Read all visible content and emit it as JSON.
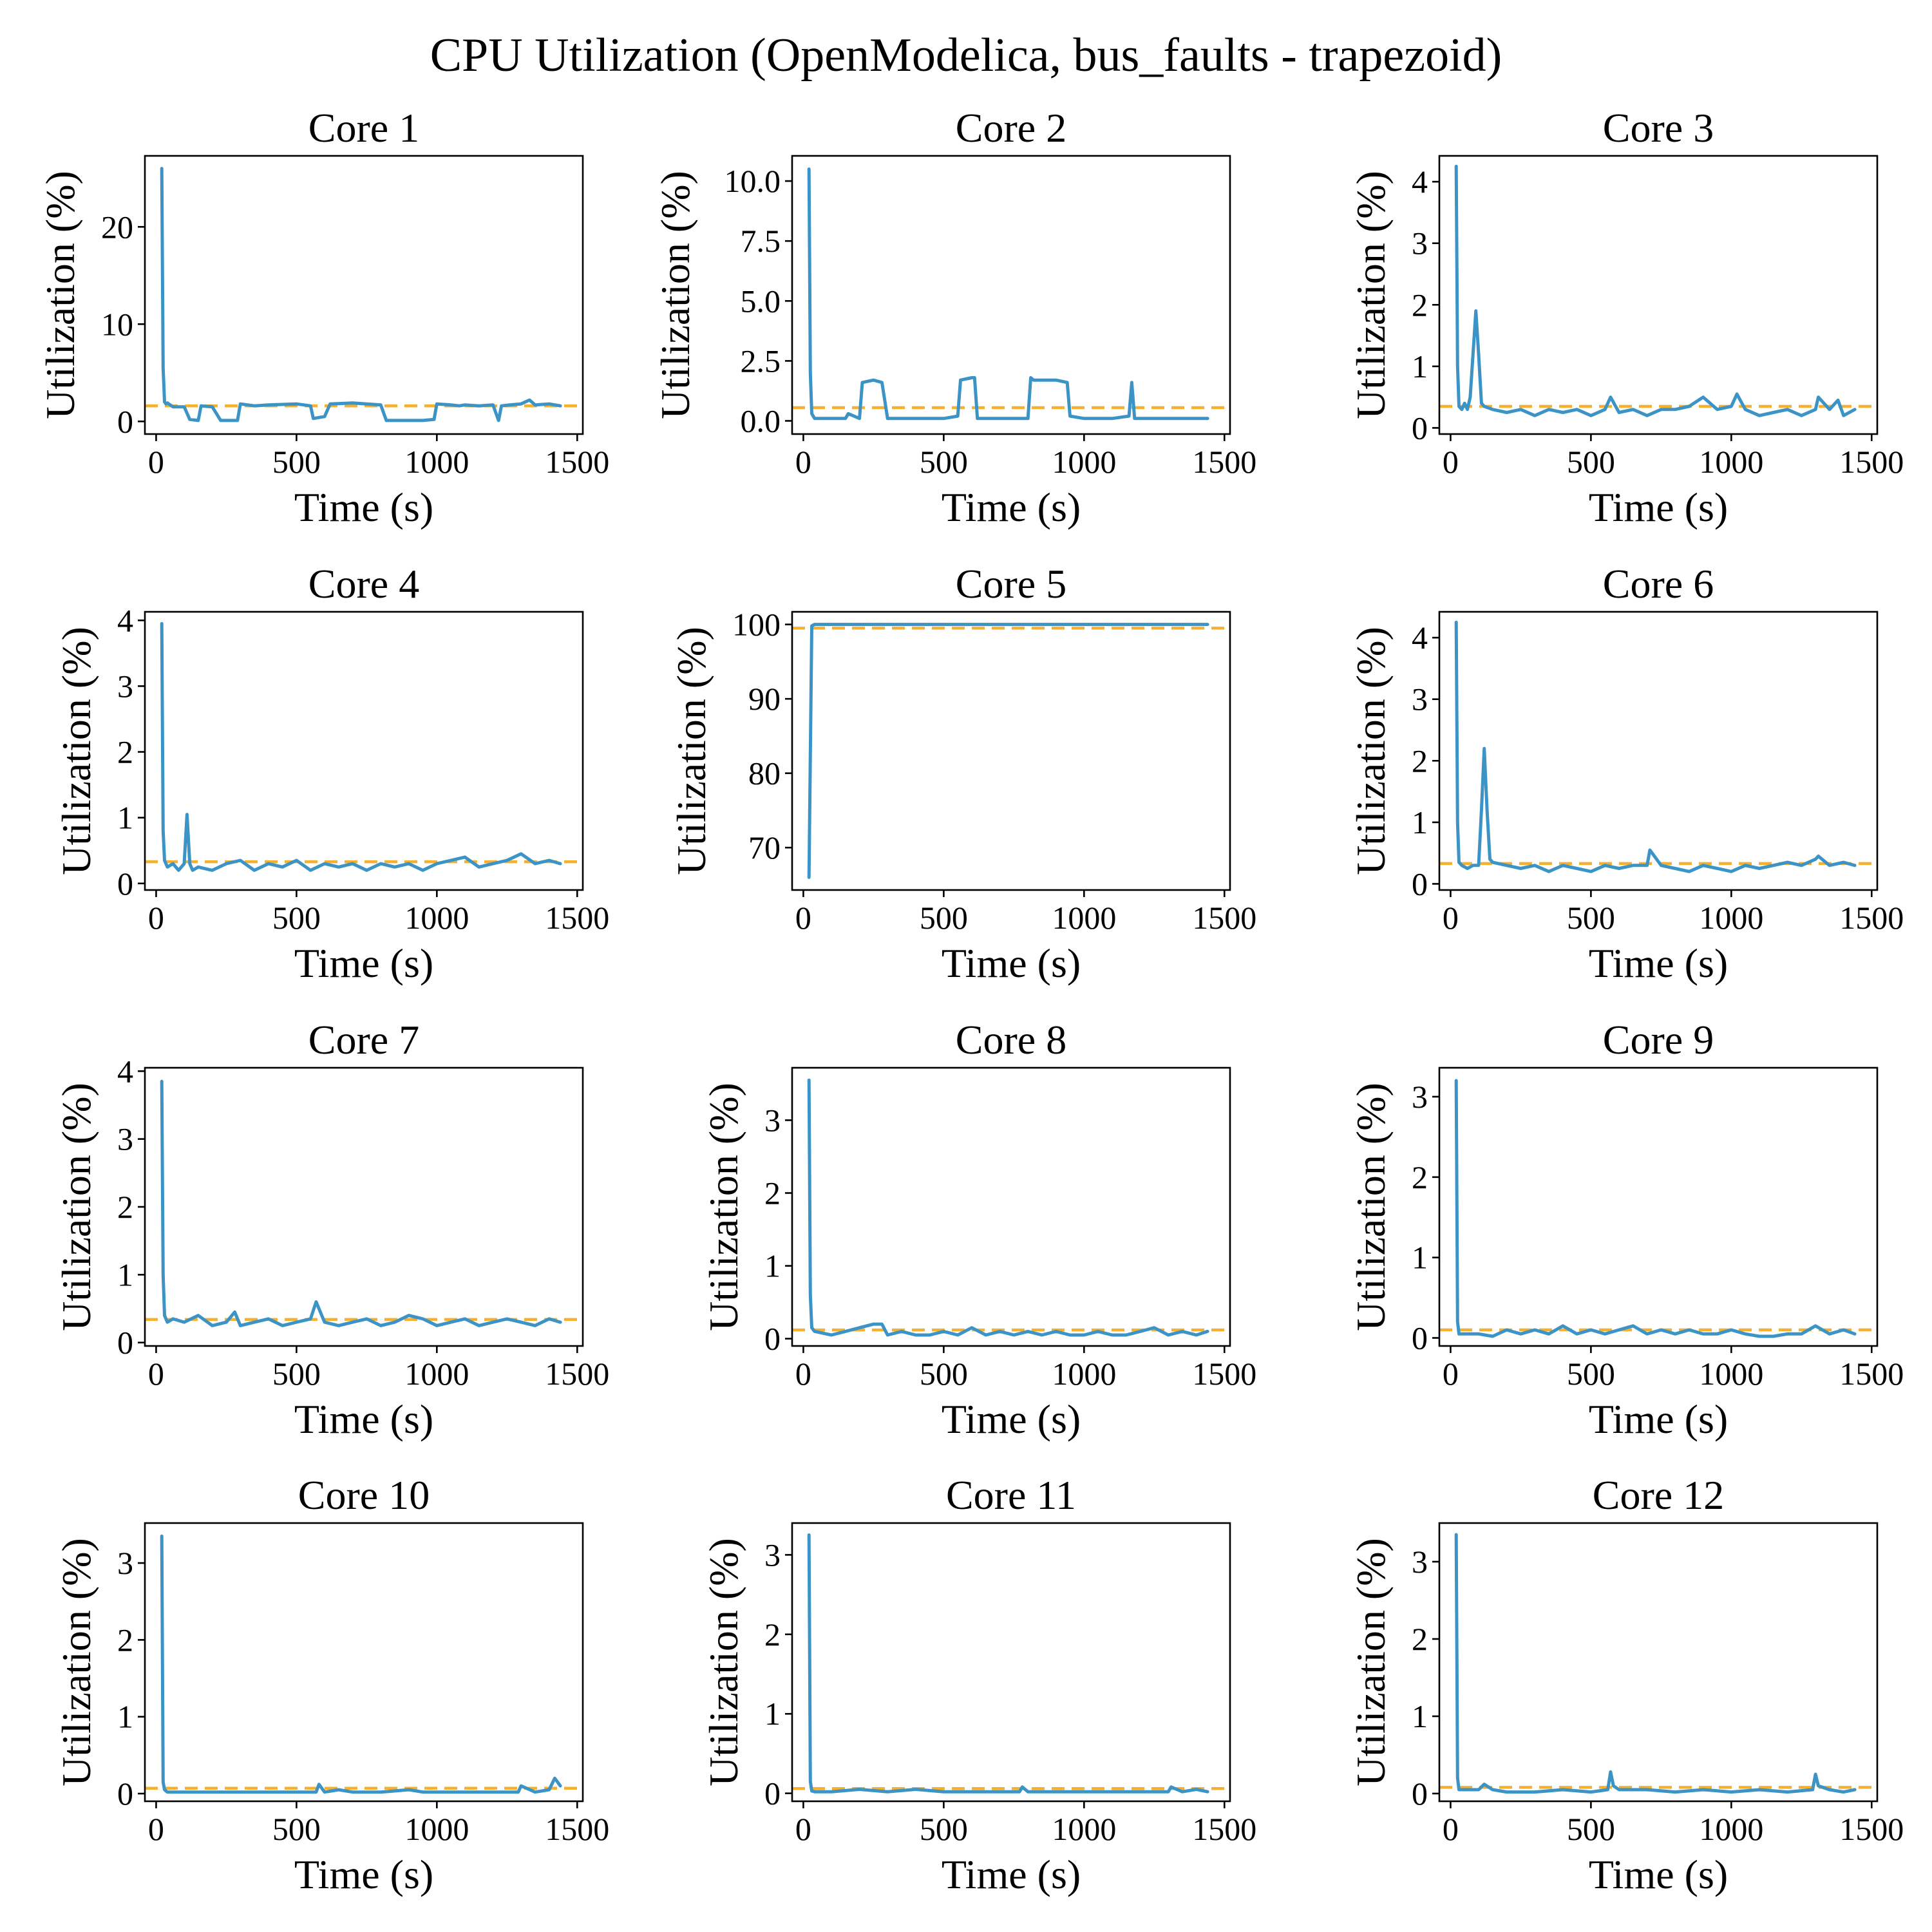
{
  "title": "CPU Utilization (OpenModelica, bus_faults - trapezoid)",
  "colors": {
    "series": "#3c94c6",
    "mean_line": "#f5b030"
  },
  "chart_data": [
    {
      "type": "line",
      "title": "Core 1",
      "xlabel": "Time (s)",
      "ylabel": "Utilization (%)",
      "xlim": [
        -40,
        1520
      ],
      "ylim": [
        -1.3,
        27.3
      ],
      "xticks": [
        0,
        500,
        1000,
        1500
      ],
      "yticks": [
        0,
        10,
        20
      ],
      "mean": 1.6,
      "x": [
        20,
        25,
        30,
        35,
        40,
        60,
        100,
        120,
        150,
        160,
        200,
        230,
        250,
        290,
        300,
        350,
        400,
        500,
        550,
        560,
        600,
        620,
        700,
        800,
        820,
        850,
        880,
        950,
        990,
        1000,
        1050,
        1080,
        1100,
        1150,
        1200,
        1220,
        1230,
        1260,
        1300,
        1330,
        1350,
        1400,
        1440
      ],
      "y": [
        26,
        5.5,
        2,
        1.8,
        1.9,
        1.5,
        1.5,
        0.2,
        0.1,
        1.6,
        1.5,
        0.1,
        0.1,
        0.1,
        1.8,
        1.6,
        1.7,
        1.8,
        1.6,
        0.3,
        0.5,
        1.8,
        1.9,
        1.7,
        0.1,
        0.1,
        0.1,
        0.1,
        0.2,
        1.8,
        1.7,
        1.6,
        1.7,
        1.6,
        1.7,
        0.1,
        1.6,
        1.7,
        1.8,
        2.2,
        1.7,
        1.8,
        1.6
      ]
    },
    {
      "type": "line",
      "title": "Core 2",
      "xlabel": "Time (s)",
      "ylabel": "Utilization (%)",
      "xlim": [
        -40,
        1520
      ],
      "ylim": [
        -0.55,
        11.05
      ],
      "xticks": [
        0,
        500,
        1000,
        1500
      ],
      "yticks": [
        0.0,
        2.5,
        5.0,
        7.5,
        10.0
      ],
      "mean": 0.55,
      "x": [
        20,
        25,
        30,
        40,
        100,
        150,
        160,
        200,
        210,
        250,
        280,
        300,
        400,
        500,
        550,
        560,
        600,
        610,
        620,
        700,
        800,
        810,
        820,
        900,
        940,
        950,
        1000,
        1100,
        1160,
        1170,
        1180,
        1200,
        1300,
        1400,
        1440
      ],
      "y": [
        10.5,
        2,
        0.3,
        0.1,
        0.1,
        0.1,
        0.3,
        0.1,
        1.6,
        1.7,
        1.6,
        0.1,
        0.1,
        0.1,
        0.2,
        1.7,
        1.8,
        1.8,
        0.1,
        0.1,
        0.1,
        1.8,
        1.7,
        1.7,
        1.6,
        0.2,
        0.1,
        0.1,
        0.2,
        1.6,
        0.1,
        0.1,
        0.1,
        0.1,
        0.1
      ]
    },
    {
      "type": "line",
      "title": "Core 3",
      "xlabel": "Time (s)",
      "ylabel": "Utilization (%)",
      "xlim": [
        -40,
        1520
      ],
      "ylim": [
        -0.1,
        4.42
      ],
      "xticks": [
        0,
        500,
        1000,
        1500
      ],
      "yticks": [
        0,
        1,
        2,
        3,
        4
      ],
      "mean": 0.35,
      "x": [
        20,
        25,
        30,
        40,
        50,
        60,
        70,
        80,
        90,
        100,
        110,
        120,
        150,
        200,
        250,
        300,
        350,
        400,
        450,
        500,
        550,
        570,
        600,
        650,
        700,
        750,
        800,
        850,
        900,
        950,
        1000,
        1020,
        1050,
        1100,
        1150,
        1200,
        1250,
        1300,
        1310,
        1350,
        1380,
        1400,
        1440
      ],
      "y": [
        4.25,
        1,
        0.35,
        0.3,
        0.4,
        0.3,
        0.5,
        1.2,
        1.9,
        1.2,
        0.4,
        0.35,
        0.3,
        0.25,
        0.3,
        0.2,
        0.3,
        0.25,
        0.3,
        0.2,
        0.3,
        0.5,
        0.25,
        0.3,
        0.2,
        0.3,
        0.3,
        0.35,
        0.5,
        0.3,
        0.35,
        0.55,
        0.3,
        0.2,
        0.25,
        0.3,
        0.2,
        0.3,
        0.5,
        0.3,
        0.45,
        0.2,
        0.3
      ]
    },
    {
      "type": "line",
      "title": "Core 4",
      "xlabel": "Time (s)",
      "ylabel": "Utilization (%)",
      "xlim": [
        -40,
        1520
      ],
      "ylim": [
        -0.1,
        4.13
      ],
      "xticks": [
        0,
        500,
        1000,
        1500
      ],
      "yticks": [
        0,
        1,
        2,
        3,
        4
      ],
      "mean": 0.33,
      "x": [
        20,
        25,
        30,
        40,
        60,
        80,
        100,
        110,
        120,
        130,
        150,
        200,
        250,
        300,
        350,
        400,
        450,
        500,
        550,
        600,
        650,
        700,
        750,
        800,
        850,
        900,
        950,
        1000,
        1050,
        1100,
        1150,
        1200,
        1250,
        1300,
        1350,
        1400,
        1440
      ],
      "y": [
        3.95,
        0.8,
        0.35,
        0.25,
        0.3,
        0.2,
        0.3,
        1.05,
        0.3,
        0.2,
        0.25,
        0.2,
        0.3,
        0.35,
        0.2,
        0.3,
        0.25,
        0.35,
        0.2,
        0.3,
        0.25,
        0.3,
        0.2,
        0.3,
        0.25,
        0.3,
        0.2,
        0.3,
        0.35,
        0.4,
        0.25,
        0.3,
        0.35,
        0.45,
        0.3,
        0.35,
        0.3
      ]
    },
    {
      "type": "line",
      "title": "Core 5",
      "xlabel": "Time (s)",
      "ylabel": "Utilization (%)",
      "xlim": [
        -40,
        1520
      ],
      "ylim": [
        64.3,
        101.7
      ],
      "xticks": [
        0,
        500,
        1000,
        1500
      ],
      "yticks": [
        70,
        80,
        90,
        100
      ],
      "mean": 99.5,
      "x": [
        20,
        30,
        40,
        100,
        500,
        1000,
        1440
      ],
      "y": [
        66,
        99.8,
        100,
        100,
        100,
        100,
        100
      ]
    },
    {
      "type": "line",
      "title": "Core 6",
      "xlabel": "Time (s)",
      "ylabel": "Utilization (%)",
      "xlim": [
        -40,
        1520
      ],
      "ylim": [
        -0.1,
        4.42
      ],
      "xticks": [
        0,
        500,
        1000,
        1500
      ],
      "yticks": [
        0,
        1,
        2,
        3,
        4
      ],
      "mean": 0.33,
      "x": [
        20,
        25,
        30,
        40,
        60,
        80,
        100,
        110,
        120,
        130,
        140,
        150,
        200,
        250,
        300,
        350,
        400,
        450,
        500,
        550,
        600,
        650,
        700,
        710,
        750,
        800,
        850,
        900,
        950,
        1000,
        1050,
        1100,
        1150,
        1200,
        1250,
        1300,
        1310,
        1350,
        1400,
        1440
      ],
      "y": [
        4.25,
        1,
        0.35,
        0.3,
        0.25,
        0.3,
        0.3,
        1.2,
        2.2,
        1.2,
        0.4,
        0.35,
        0.3,
        0.25,
        0.3,
        0.2,
        0.3,
        0.25,
        0.2,
        0.3,
        0.25,
        0.3,
        0.3,
        0.55,
        0.3,
        0.25,
        0.2,
        0.3,
        0.25,
        0.2,
        0.3,
        0.25,
        0.3,
        0.35,
        0.3,
        0.4,
        0.45,
        0.3,
        0.35,
        0.3
      ]
    },
    {
      "type": "line",
      "title": "Core 7",
      "xlabel": "Time (s)",
      "ylabel": "Utilization (%)",
      "xlim": [
        -40,
        1520
      ],
      "ylim": [
        -0.05,
        4.05
      ],
      "xticks": [
        0,
        500,
        1000,
        1500
      ],
      "yticks": [
        0,
        1,
        2,
        3,
        4
      ],
      "mean": 0.34,
      "x": [
        20,
        25,
        30,
        40,
        60,
        100,
        150,
        200,
        250,
        280,
        300,
        350,
        400,
        450,
        500,
        550,
        570,
        600,
        650,
        700,
        750,
        800,
        850,
        900,
        950,
        1000,
        1050,
        1100,
        1150,
        1200,
        1250,
        1300,
        1350,
        1400,
        1440
      ],
      "y": [
        3.85,
        1,
        0.4,
        0.3,
        0.35,
        0.3,
        0.4,
        0.25,
        0.3,
        0.45,
        0.25,
        0.3,
        0.35,
        0.25,
        0.3,
        0.35,
        0.6,
        0.3,
        0.25,
        0.3,
        0.35,
        0.25,
        0.3,
        0.4,
        0.35,
        0.25,
        0.3,
        0.35,
        0.25,
        0.3,
        0.35,
        0.3,
        0.25,
        0.35,
        0.3
      ]
    },
    {
      "type": "line",
      "title": "Core 8",
      "xlabel": "Time (s)",
      "ylabel": "Utilization (%)",
      "xlim": [
        -40,
        1520
      ],
      "ylim": [
        -0.1,
        3.72
      ],
      "xticks": [
        0,
        500,
        1000,
        1500
      ],
      "yticks": [
        0,
        1,
        2,
        3
      ],
      "mean": 0.12,
      "x": [
        20,
        25,
        30,
        40,
        100,
        150,
        200,
        250,
        280,
        300,
        350,
        400,
        450,
        500,
        550,
        600,
        650,
        700,
        750,
        800,
        850,
        900,
        950,
        1000,
        1050,
        1100,
        1150,
        1200,
        1250,
        1300,
        1350,
        1400,
        1440
      ],
      "y": [
        3.55,
        0.6,
        0.15,
        0.1,
        0.05,
        0.1,
        0.15,
        0.2,
        0.2,
        0.05,
        0.1,
        0.05,
        0.05,
        0.1,
        0.05,
        0.15,
        0.05,
        0.1,
        0.05,
        0.1,
        0.05,
        0.1,
        0.05,
        0.05,
        0.1,
        0.05,
        0.05,
        0.1,
        0.15,
        0.05,
        0.1,
        0.05,
        0.1
      ]
    },
    {
      "type": "line",
      "title": "Core 9",
      "xlabel": "Time (s)",
      "ylabel": "Utilization (%)",
      "xlim": [
        -40,
        1520
      ],
      "ylim": [
        -0.1,
        3.36
      ],
      "xticks": [
        0,
        500,
        1000,
        1500
      ],
      "yticks": [
        0,
        1,
        2,
        3
      ],
      "mean": 0.1,
      "x": [
        20,
        25,
        30,
        40,
        100,
        150,
        200,
        250,
        300,
        350,
        400,
        450,
        500,
        550,
        600,
        650,
        700,
        750,
        800,
        850,
        900,
        950,
        1000,
        1050,
        1100,
        1150,
        1200,
        1250,
        1300,
        1350,
        1400,
        1440
      ],
      "y": [
        3.2,
        0.2,
        0.05,
        0.05,
        0.05,
        0.02,
        0.1,
        0.05,
        0.1,
        0.05,
        0.15,
        0.05,
        0.1,
        0.05,
        0.1,
        0.15,
        0.05,
        0.1,
        0.05,
        0.1,
        0.05,
        0.05,
        0.1,
        0.05,
        0.02,
        0.02,
        0.05,
        0.05,
        0.15,
        0.05,
        0.1,
        0.05
      ]
    },
    {
      "type": "line",
      "title": "Core 10",
      "xlabel": "Time (s)",
      "ylabel": "Utilization (%)",
      "xlim": [
        -40,
        1520
      ],
      "ylim": [
        -0.1,
        3.52
      ],
      "xticks": [
        0,
        500,
        1000,
        1500
      ],
      "yticks": [
        0,
        1,
        2,
        3
      ],
      "mean": 0.07,
      "x": [
        20,
        25,
        30,
        40,
        100,
        150,
        200,
        300,
        400,
        500,
        570,
        580,
        600,
        650,
        700,
        800,
        900,
        950,
        1000,
        1100,
        1200,
        1290,
        1300,
        1350,
        1400,
        1420,
        1440
      ],
      "y": [
        3.35,
        0.15,
        0.05,
        0.02,
        0.02,
        0.02,
        0.02,
        0.02,
        0.02,
        0.02,
        0.02,
        0.12,
        0.02,
        0.05,
        0.02,
        0.02,
        0.05,
        0.02,
        0.02,
        0.02,
        0.02,
        0.02,
        0.1,
        0.02,
        0.05,
        0.2,
        0.1
      ]
    },
    {
      "type": "line",
      "title": "Core 11",
      "xlabel": "Time (s)",
      "ylabel": "Utilization (%)",
      "xlim": [
        -40,
        1520
      ],
      "ylim": [
        -0.1,
        3.4
      ],
      "xticks": [
        0,
        500,
        1000,
        1500
      ],
      "yticks": [
        0,
        1,
        2,
        3
      ],
      "mean": 0.06,
      "x": [
        20,
        25,
        30,
        40,
        100,
        200,
        300,
        400,
        500,
        600,
        700,
        770,
        780,
        800,
        900,
        1000,
        1100,
        1200,
        1300,
        1310,
        1350,
        1400,
        1440
      ],
      "y": [
        3.25,
        0.15,
        0.03,
        0.02,
        0.02,
        0.05,
        0.02,
        0.05,
        0.02,
        0.02,
        0.02,
        0.02,
        0.08,
        0.02,
        0.02,
        0.02,
        0.02,
        0.02,
        0.02,
        0.08,
        0.02,
        0.05,
        0.02
      ]
    },
    {
      "type": "line",
      "title": "Core 12",
      "xlabel": "Time (s)",
      "ylabel": "Utilization (%)",
      "xlim": [
        -40,
        1520
      ],
      "ylim": [
        -0.1,
        3.5
      ],
      "xticks": [
        0,
        500,
        1000,
        1500
      ],
      "yticks": [
        0,
        1,
        2,
        3
      ],
      "mean": 0.08,
      "x": [
        20,
        25,
        30,
        40,
        100,
        120,
        150,
        200,
        300,
        400,
        500,
        560,
        570,
        580,
        600,
        700,
        800,
        900,
        1000,
        1100,
        1200,
        1290,
        1300,
        1310,
        1350,
        1400,
        1440
      ],
      "y": [
        3.35,
        0.2,
        0.05,
        0.05,
        0.05,
        0.12,
        0.05,
        0.02,
        0.02,
        0.05,
        0.02,
        0.05,
        0.28,
        0.1,
        0.05,
        0.05,
        0.02,
        0.05,
        0.02,
        0.05,
        0.02,
        0.05,
        0.25,
        0.1,
        0.05,
        0.02,
        0.05
      ]
    }
  ]
}
